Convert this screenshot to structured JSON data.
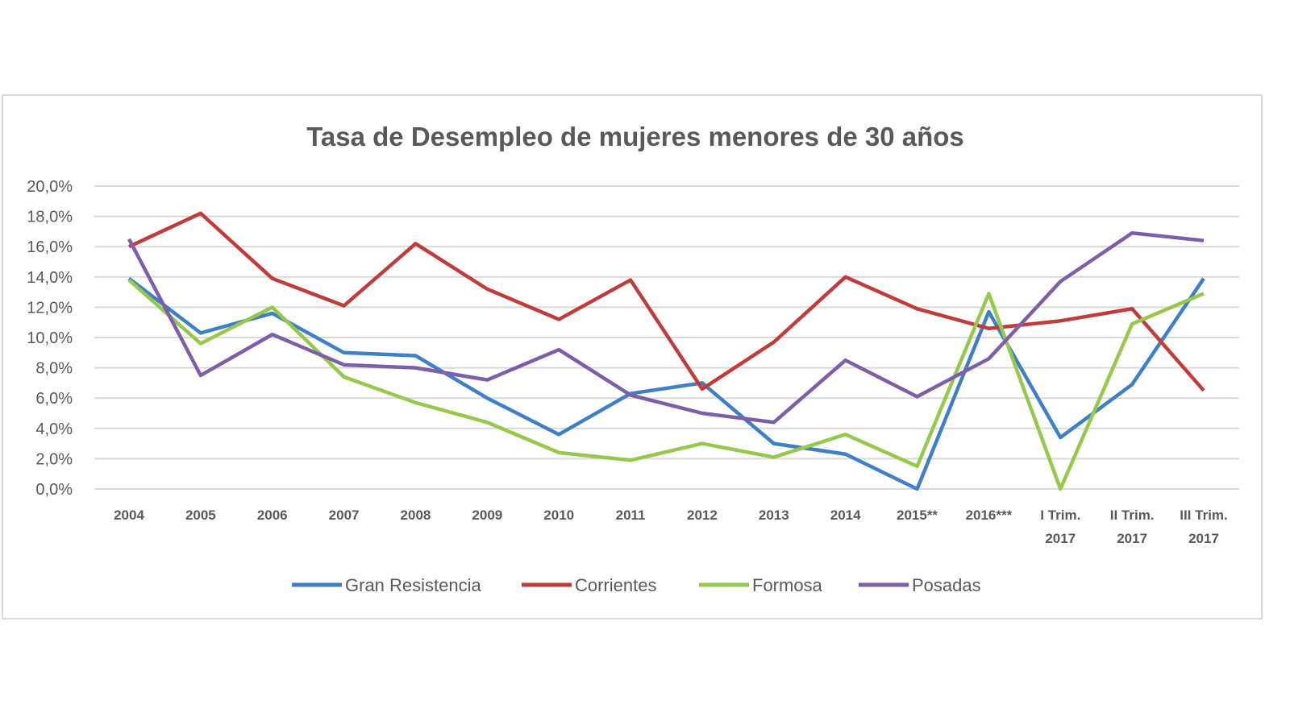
{
  "chart_data": {
    "type": "line",
    "title": "Tasa de Desempleo de mujeres menores de 30 años",
    "xlabel": "",
    "ylabel": "",
    "ylim": [
      0,
      20
    ],
    "yticks": [
      "0,0%",
      "2,0%",
      "4,0%",
      "6,0%",
      "8,0%",
      "10,0%",
      "12,0%",
      "14,0%",
      "16,0%",
      "18,0%",
      "20,0%"
    ],
    "categories": [
      [
        "2004"
      ],
      [
        "2005"
      ],
      [
        "2006"
      ],
      [
        "2007"
      ],
      [
        "2008"
      ],
      [
        "2009"
      ],
      [
        "2010"
      ],
      [
        "2011"
      ],
      [
        "2012"
      ],
      [
        "2013"
      ],
      [
        "2014"
      ],
      [
        "2015**"
      ],
      [
        "2016***"
      ],
      [
        "I Trim.",
        "2017"
      ],
      [
        "II Trim.",
        "2017"
      ],
      [
        "III Trim.",
        "2017"
      ]
    ],
    "grid": true,
    "legend_position": "bottom",
    "series": [
      {
        "name": "Gran Resistencia",
        "color": "#3f7fc8",
        "values": [
          13.9,
          10.3,
          11.6,
          9.0,
          8.8,
          6.0,
          3.6,
          6.3,
          7.0,
          3.0,
          2.3,
          0.0,
          11.7,
          3.4,
          6.9,
          13.9
        ]
      },
      {
        "name": "Corrientes",
        "color": "#c23b3b",
        "values": [
          16.0,
          18.2,
          13.9,
          12.1,
          16.2,
          13.2,
          11.2,
          13.8,
          6.6,
          9.7,
          14.0,
          11.9,
          10.6,
          11.1,
          11.9,
          6.5
        ]
      },
      {
        "name": "Formosa",
        "color": "#96c84c",
        "values": [
          13.8,
          9.6,
          12.0,
          7.4,
          5.7,
          4.4,
          2.4,
          1.9,
          3.0,
          2.1,
          3.6,
          1.5,
          12.9,
          0.0,
          10.9,
          12.9
        ]
      },
      {
        "name": "Posadas",
        "color": "#7d5ea8",
        "values": [
          16.5,
          7.5,
          10.2,
          8.2,
          8.0,
          7.2,
          9.2,
          6.2,
          5.0,
          4.4,
          8.5,
          6.1,
          8.6,
          13.7,
          16.9,
          16.4
        ]
      }
    ]
  }
}
